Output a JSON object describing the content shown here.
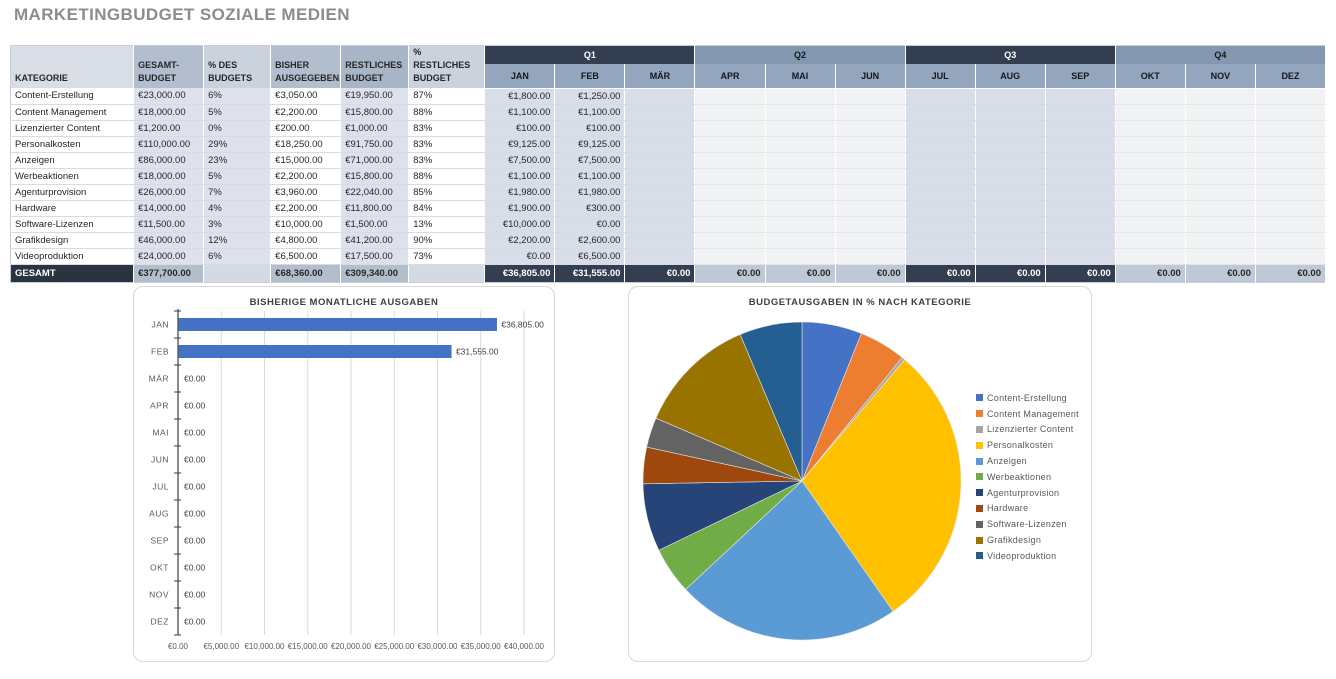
{
  "page": {
    "title": "MARKETINGBUDGET SOZIALE MEDIEN"
  },
  "colors": {
    "accent_bar": "#4472C4",
    "band_dark": "#333F50",
    "band_medium": "#8497B0",
    "total_row_dark": "#2A3440"
  },
  "table": {
    "headers": [
      {
        "label": "KATEGORIE"
      },
      {
        "label": "GESAMT-BUDGET"
      },
      {
        "label": "% DES BUDGETS"
      },
      {
        "label": "BISHER AUSGEGEBEN"
      },
      {
        "label": "RESTLICHES BUDGET"
      },
      {
        "label": "% RESTLICHES BUDGET"
      }
    ],
    "quarters": [
      {
        "label": "Q1",
        "months": [
          "JAN",
          "FEB",
          "MÄR"
        ]
      },
      {
        "label": "Q2",
        "months": [
          "APR",
          "MAI",
          "JUN"
        ]
      },
      {
        "label": "Q3",
        "months": [
          "JUL",
          "AUG",
          "SEP"
        ]
      },
      {
        "label": "Q4",
        "months": [
          "OKT",
          "NOV",
          "DEZ"
        ]
      }
    ],
    "rows": [
      {
        "kategorie": "Content-Erstellung",
        "gesamt_budget": "€23,000.00",
        "pct_budget": "6%",
        "bisher": "€3,050.00",
        "restliches": "€19,950.00",
        "pct_rest": "87%",
        "monate": [
          "€1,800.00",
          "€1,250.00",
          "",
          "",
          "",
          "",
          "",
          "",
          "",
          "",
          "",
          ""
        ]
      },
      {
        "kategorie": "Content Management",
        "gesamt_budget": "€18,000.00",
        "pct_budget": "5%",
        "bisher": "€2,200.00",
        "restliches": "€15,800.00",
        "pct_rest": "88%",
        "monate": [
          "€1,100.00",
          "€1,100.00",
          "",
          "",
          "",
          "",
          "",
          "",
          "",
          "",
          "",
          ""
        ]
      },
      {
        "kategorie": "Lizenzierter Content",
        "gesamt_budget": "€1,200.00",
        "pct_budget": "0%",
        "bisher": "€200.00",
        "restliches": "€1,000.00",
        "pct_rest": "83%",
        "monate": [
          "€100.00",
          "€100.00",
          "",
          "",
          "",
          "",
          "",
          "",
          "",
          "",
          "",
          ""
        ]
      },
      {
        "kategorie": "Personalkosten",
        "gesamt_budget": "€110,000.00",
        "pct_budget": "29%",
        "bisher": "€18,250.00",
        "restliches": "€91,750.00",
        "pct_rest": "83%",
        "monate": [
          "€9,125.00",
          "€9,125.00",
          "",
          "",
          "",
          "",
          "",
          "",
          "",
          "",
          "",
          ""
        ]
      },
      {
        "kategorie": "Anzeigen",
        "gesamt_budget": "€86,000.00",
        "pct_budget": "23%",
        "bisher": "€15,000.00",
        "restliches": "€71,000.00",
        "pct_rest": "83%",
        "monate": [
          "€7,500.00",
          "€7,500.00",
          "",
          "",
          "",
          "",
          "",
          "",
          "",
          "",
          "",
          ""
        ]
      },
      {
        "kategorie": "Werbeaktionen",
        "gesamt_budget": "€18,000.00",
        "pct_budget": "5%",
        "bisher": "€2,200.00",
        "restliches": "€15,800.00",
        "pct_rest": "88%",
        "monate": [
          "€1,100.00",
          "€1,100.00",
          "",
          "",
          "",
          "",
          "",
          "",
          "",
          "",
          "",
          ""
        ]
      },
      {
        "kategorie": "Agenturprovision",
        "gesamt_budget": "€26,000.00",
        "pct_budget": "7%",
        "bisher": "€3,960.00",
        "restliches": "€22,040.00",
        "pct_rest": "85%",
        "monate": [
          "€1,980.00",
          "€1,980.00",
          "",
          "",
          "",
          "",
          "",
          "",
          "",
          "",
          "",
          ""
        ]
      },
      {
        "kategorie": "Hardware",
        "gesamt_budget": "€14,000.00",
        "pct_budget": "4%",
        "bisher": "€2,200.00",
        "restliches": "€11,800.00",
        "pct_rest": "84%",
        "monate": [
          "€1,900.00",
          "€300.00",
          "",
          "",
          "",
          "",
          "",
          "",
          "",
          "",
          "",
          ""
        ]
      },
      {
        "kategorie": "Software-Lizenzen",
        "gesamt_budget": "€11,500.00",
        "pct_budget": "3%",
        "bisher": "€10,000.00",
        "restliches": "€1,500.00",
        "pct_rest": "13%",
        "monate": [
          "€10,000.00",
          "€0.00",
          "",
          "",
          "",
          "",
          "",
          "",
          "",
          "",
          "",
          ""
        ]
      },
      {
        "kategorie": "Grafikdesign",
        "gesamt_budget": "€46,000.00",
        "pct_budget": "12%",
        "bisher": "€4,800.00",
        "restliches": "€41,200.00",
        "pct_rest": "90%",
        "monate": [
          "€2,200.00",
          "€2,600.00",
          "",
          "",
          "",
          "",
          "",
          "",
          "",
          "",
          "",
          ""
        ]
      },
      {
        "kategorie": "Videoproduktion",
        "gesamt_budget": "€24,000.00",
        "pct_budget": "6%",
        "bisher": "€6,500.00",
        "restliches": "€17,500.00",
        "pct_rest": "73%",
        "monate": [
          "€0.00",
          "€6,500.00",
          "",
          "",
          "",
          "",
          "",
          "",
          "",
          "",
          "",
          ""
        ]
      }
    ],
    "total": {
      "label": "GESAMT",
      "gesamt_budget": "€377,700.00",
      "pct_budget": "",
      "bisher": "€68,360.00",
      "restliches": "€309,340.00",
      "pct_rest": "",
      "monate": [
        "€36,805.00",
        "€31,555.00",
        "€0.00",
        "€0.00",
        "€0.00",
        "€0.00",
        "€0.00",
        "€0.00",
        "€0.00",
        "€0.00",
        "€0.00",
        "€0.00"
      ]
    }
  },
  "chart_data": [
    {
      "type": "bar",
      "orientation": "horizontal",
      "title": "BISHERIGE MONATLICHE AUSGABEN",
      "categories": [
        "JAN",
        "FEB",
        "MÄR",
        "APR",
        "MAI",
        "JUN",
        "JUL",
        "AUG",
        "SEP",
        "OKT",
        "NOV",
        "DEZ"
      ],
      "values": [
        36805,
        31555,
        0,
        0,
        0,
        0,
        0,
        0,
        0,
        0,
        0,
        0
      ],
      "value_labels": [
        "€36,805.00",
        "€31,555.00",
        "€0.00",
        "€0.00",
        "€0.00",
        "€0.00",
        "€0.00",
        "€0.00",
        "€0.00",
        "€0.00",
        "€0.00",
        "€0.00"
      ],
      "xlim": [
        0,
        40000
      ],
      "x_tick_labels": [
        "€0.00",
        "€5,000.00",
        "€10,000.00",
        "€15,000.00",
        "€20,000.00",
        "€25,000.00",
        "€30,000.00",
        "€35,000.00",
        "€40,000.00"
      ],
      "bar_color": "#4472C4",
      "grid": true,
      "legend_position": "none"
    },
    {
      "type": "pie",
      "title": "BUDGETAUSGABEN IN % NACH KATEGORIE",
      "labels": [
        "Content-Erstellung",
        "Content Management",
        "Lizenzierter Content",
        "Personalkosten",
        "Anzeigen",
        "Werbeaktionen",
        "Agenturprovision",
        "Hardware",
        "Software-Lizenzen",
        "Grafikdesign",
        "Videoproduktion"
      ],
      "values": [
        23000,
        18000,
        1200,
        110000,
        86000,
        18000,
        26000,
        14000,
        11500,
        46000,
        24000
      ],
      "colors": [
        "#4472C4",
        "#ED7D31",
        "#A5A5A5",
        "#FFC000",
        "#5B9BD5",
        "#70AD47",
        "#264478",
        "#9E480E",
        "#636363",
        "#997300",
        "#255E91"
      ],
      "legend_position": "right",
      "start_angle_deg": 0,
      "direction": "clockwise"
    }
  ]
}
